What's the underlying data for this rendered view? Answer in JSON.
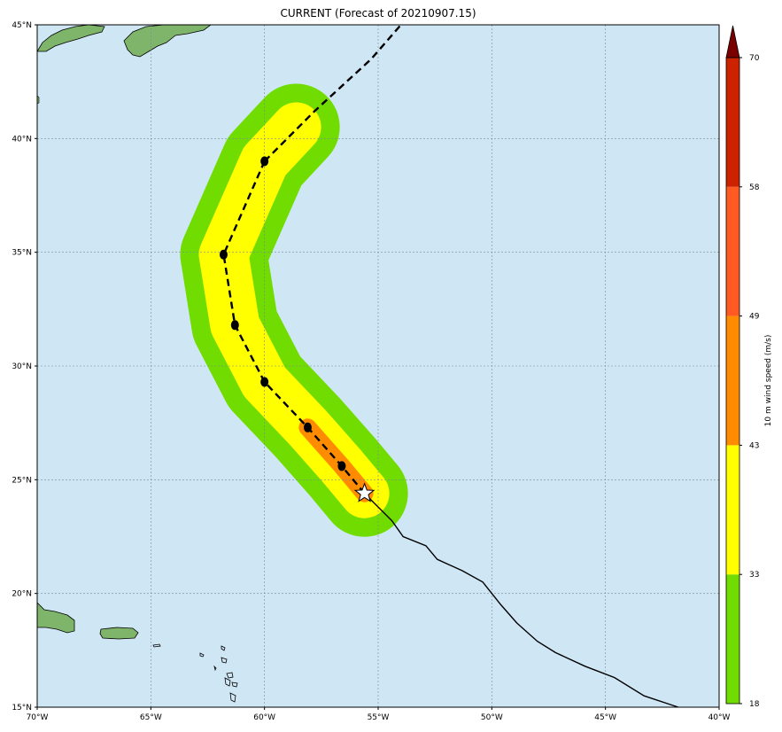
{
  "title": "CURRENT (Forecast of 20210907.15)",
  "map": {
    "lon_range": [
      -70,
      -40
    ],
    "lat_range": [
      15,
      45
    ],
    "lon_ticks": [
      {
        "value": -70,
        "label": "70°W"
      },
      {
        "value": -65,
        "label": "65°W"
      },
      {
        "value": -60,
        "label": "60°W"
      },
      {
        "value": -55,
        "label": "55°W"
      },
      {
        "value": -50,
        "label": "50°W"
      },
      {
        "value": -45,
        "label": "45°W"
      },
      {
        "value": -40,
        "label": "40°W"
      }
    ],
    "lat_ticks": [
      {
        "value": 15,
        "label": "15°N"
      },
      {
        "value": 20,
        "label": "20°N"
      },
      {
        "value": 25,
        "label": "25°N"
      },
      {
        "value": 30,
        "label": "30°N"
      },
      {
        "value": 35,
        "label": "35°N"
      },
      {
        "value": 40,
        "label": "40°N"
      },
      {
        "value": 45,
        "label": "45°N"
      }
    ],
    "grid": true,
    "colors": {
      "ocean": "#cfe6f5",
      "land": "#8fbf7a",
      "grid": "#7a8a96",
      "track": "#000000",
      "swath_18": "#71dc00",
      "swath_33": "#ffff00",
      "swath_43": "#ff8c00"
    }
  },
  "chart_data": {
    "type": "map",
    "past_track": [
      {
        "lon": -41.8,
        "lat": 15.0
      },
      {
        "lon": -43.3,
        "lat": 15.5
      },
      {
        "lon": -44.6,
        "lat": 16.3
      },
      {
        "lon": -45.9,
        "lat": 16.8
      },
      {
        "lon": -47.2,
        "lat": 17.4
      },
      {
        "lon": -48.0,
        "lat": 17.9
      },
      {
        "lon": -48.9,
        "lat": 18.7
      },
      {
        "lon": -49.6,
        "lat": 19.5
      },
      {
        "lon": -50.4,
        "lat": 20.5
      },
      {
        "lon": -51.3,
        "lat": 21.0
      },
      {
        "lon": -52.4,
        "lat": 21.5
      },
      {
        "lon": -52.9,
        "lat": 22.1
      },
      {
        "lon": -53.9,
        "lat": 22.5
      },
      {
        "lon": -54.4,
        "lat": 23.2
      },
      {
        "lon": -55.0,
        "lat": 23.8
      },
      {
        "lon": -55.6,
        "lat": 24.4
      }
    ],
    "current_position": {
      "lon": -55.6,
      "lat": 24.4
    },
    "forecast_points": [
      {
        "lon": -56.6,
        "lat": 25.6
      },
      {
        "lon": -58.1,
        "lat": 27.3
      },
      {
        "lon": -60.0,
        "lat": 29.3
      },
      {
        "lon": -61.3,
        "lat": 31.8
      },
      {
        "lon": -61.8,
        "lat": 34.9
      },
      {
        "lon": -60.0,
        "lat": 39.0
      }
    ],
    "forecast_extension": [
      {
        "lon": -60.0,
        "lat": 39.0
      },
      {
        "lon": -57.8,
        "lat": 41.2
      },
      {
        "lon": -55.3,
        "lat": 43.5
      },
      {
        "lon": -54.0,
        "lat": 45.0
      }
    ],
    "swath": {
      "levels_ms": [
        18,
        33,
        43
      ],
      "centerline": [
        {
          "lon": -55.6,
          "lat": 24.4
        },
        {
          "lon": -56.6,
          "lat": 25.6
        },
        {
          "lon": -58.1,
          "lat": 27.3
        },
        {
          "lon": -60.0,
          "lat": 29.3
        },
        {
          "lon": -61.3,
          "lat": 31.8
        },
        {
          "lon": -61.8,
          "lat": 34.9
        },
        {
          "lon": -60.0,
          "lat": 39.0
        },
        {
          "lon": -58.6,
          "lat": 40.5
        }
      ]
    },
    "colorbar": {
      "label": "10 m wind speed (m/s)",
      "ticks": [
        18,
        33,
        43,
        49,
        58,
        70
      ],
      "bands": [
        {
          "from": 18,
          "to": 33,
          "color": "#71dc00"
        },
        {
          "from": 33,
          "to": 43,
          "color": "#ffff00"
        },
        {
          "from": 43,
          "to": 49,
          "color": "#ff8c00"
        },
        {
          "from": 49,
          "to": 58,
          "color": "#ff5a22"
        },
        {
          "from": 58,
          "to": 70,
          "color": "#cc2200"
        }
      ],
      "extend_color": "#7a0000"
    }
  }
}
